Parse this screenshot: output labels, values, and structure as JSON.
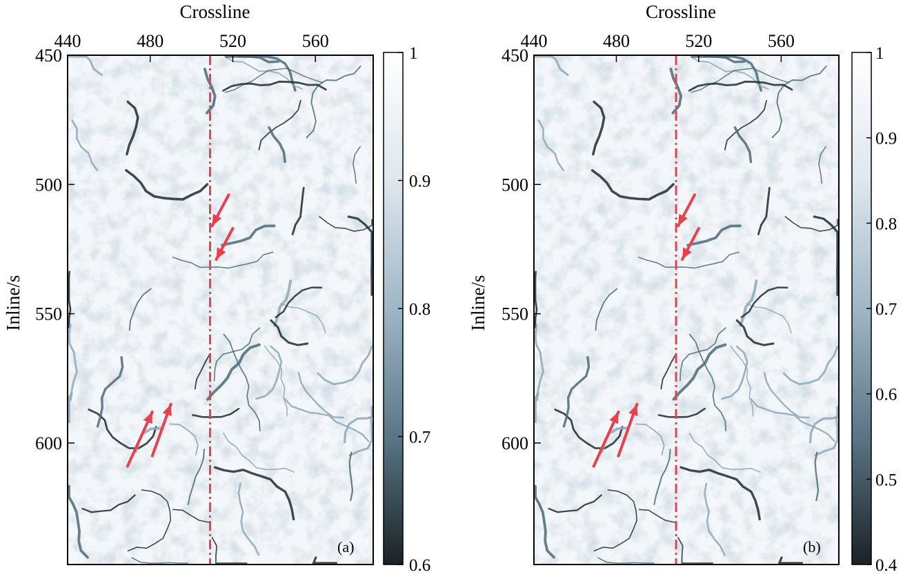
{
  "chart_data": [
    {
      "type": "heatmap",
      "panel_label": "(a)",
      "xlabel": "Crossline",
      "ylabel": "Inline/s",
      "xlim": [
        440,
        588
      ],
      "ylim": [
        450,
        647
      ],
      "x_ticks": [
        440,
        480,
        520,
        560
      ],
      "y_ticks": [
        450,
        500,
        550,
        600
      ],
      "x_axis_position": "top",
      "colorbar": {
        "min": 0.6,
        "max": 1.0,
        "ticks": [
          1,
          0.9,
          0.8,
          0.7,
          0.6
        ],
        "colormap": "white-to-dark-blue-gray"
      },
      "reference_line": {
        "crossline": 509,
        "style": "dash-dot",
        "color": "#e8414e"
      },
      "arrows": [
        {
          "from": [
            518,
            504
          ],
          "to": [
            510,
            516
          ],
          "color": "#e8414e"
        },
        {
          "from": [
            520,
            517
          ],
          "to": [
            512,
            529
          ],
          "color": "#e8414e"
        },
        {
          "from": [
            469,
            609
          ],
          "to": [
            481,
            588
          ],
          "color": "#e8414e"
        },
        {
          "from": [
            481,
            605
          ],
          "to": [
            490,
            585
          ],
          "color": "#e8414e"
        }
      ]
    },
    {
      "type": "heatmap",
      "panel_label": "(b)",
      "xlabel": "Crossline",
      "ylabel": "Inline/s",
      "xlim": [
        440,
        588
      ],
      "ylim": [
        450,
        647
      ],
      "x_ticks": [
        440,
        480,
        520,
        560
      ],
      "y_ticks": [
        450,
        500,
        550,
        600
      ],
      "x_axis_position": "top",
      "colorbar": {
        "min": 0.4,
        "max": 1.0,
        "ticks": [
          1,
          0.9,
          0.8,
          0.7,
          0.6,
          0.5,
          0.4
        ],
        "colormap": "white-to-dark-blue-gray"
      },
      "reference_line": {
        "crossline": 509,
        "style": "dash-dot",
        "color": "#e8414e"
      },
      "arrows": [
        {
          "from": [
            518,
            504
          ],
          "to": [
            510,
            516
          ],
          "color": "#e8414e"
        },
        {
          "from": [
            520,
            517
          ],
          "to": [
            512,
            529
          ],
          "color": "#e8414e"
        },
        {
          "from": [
            469,
            609
          ],
          "to": [
            481,
            588
          ],
          "color": "#e8414e"
        },
        {
          "from": [
            481,
            605
          ],
          "to": [
            490,
            585
          ],
          "color": "#e8414e"
        }
      ]
    }
  ]
}
